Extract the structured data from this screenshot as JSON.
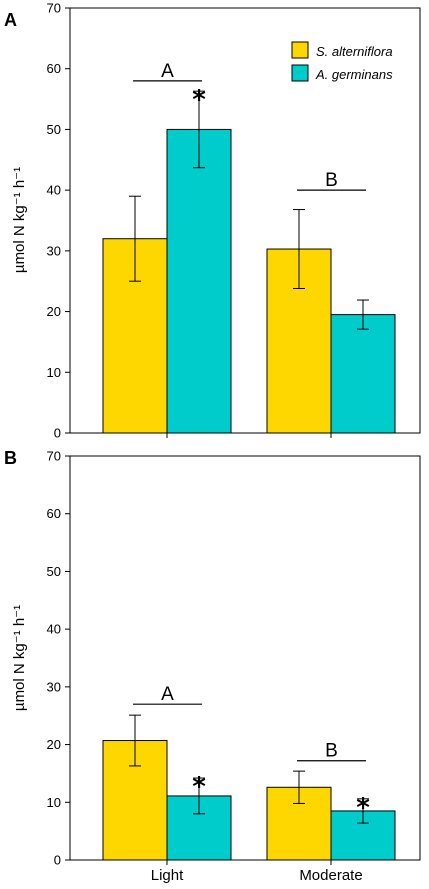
{
  "figure": {
    "panel_labels": [
      "A",
      "B"
    ]
  },
  "chart_data": [
    {
      "type": "bar",
      "panel": "A",
      "categories": [
        "",
        ""
      ],
      "ylabel": "µmol N kg⁻¹ h⁻¹",
      "ylim": [
        0,
        70
      ],
      "yticks": [
        0,
        10,
        20,
        30,
        40,
        50,
        60,
        70
      ],
      "legend": {
        "placement": "top-right"
      },
      "series": [
        {
          "name": "S. alterniflora",
          "color": "#FFD700",
          "values": [
            32,
            30.3
          ],
          "err": [
            7,
            6.5
          ],
          "stars": [
            false,
            false
          ]
        },
        {
          "name": "A. germinans",
          "color": "#00CCCC",
          "values": [
            50,
            19.5
          ],
          "err": [
            6.3,
            2.4
          ],
          "stars": [
            true,
            false
          ]
        }
      ],
      "group_letters": [
        "A",
        "B"
      ],
      "group_letter_y": [
        58,
        40
      ]
    },
    {
      "type": "bar",
      "panel": "B",
      "categories": [
        "Light",
        "Moderate"
      ],
      "ylabel": "µmol N kg⁻¹ h⁻¹",
      "ylim": [
        0,
        70
      ],
      "yticks": [
        0,
        10,
        20,
        30,
        40,
        50,
        60,
        70
      ],
      "series": [
        {
          "name": "S. alterniflora",
          "color": "#FFD700",
          "values": [
            20.7,
            12.6
          ],
          "err": [
            4.4,
            2.8
          ],
          "stars": [
            false,
            false
          ]
        },
        {
          "name": "A. germinans",
          "color": "#00CCCC",
          "values": [
            11.1,
            8.5
          ],
          "err": [
            3.1,
            2.1
          ],
          "stars": [
            true,
            true
          ]
        }
      ],
      "group_letters": [
        "A",
        "B"
      ],
      "group_letter_y": [
        27,
        17.2
      ]
    }
  ]
}
